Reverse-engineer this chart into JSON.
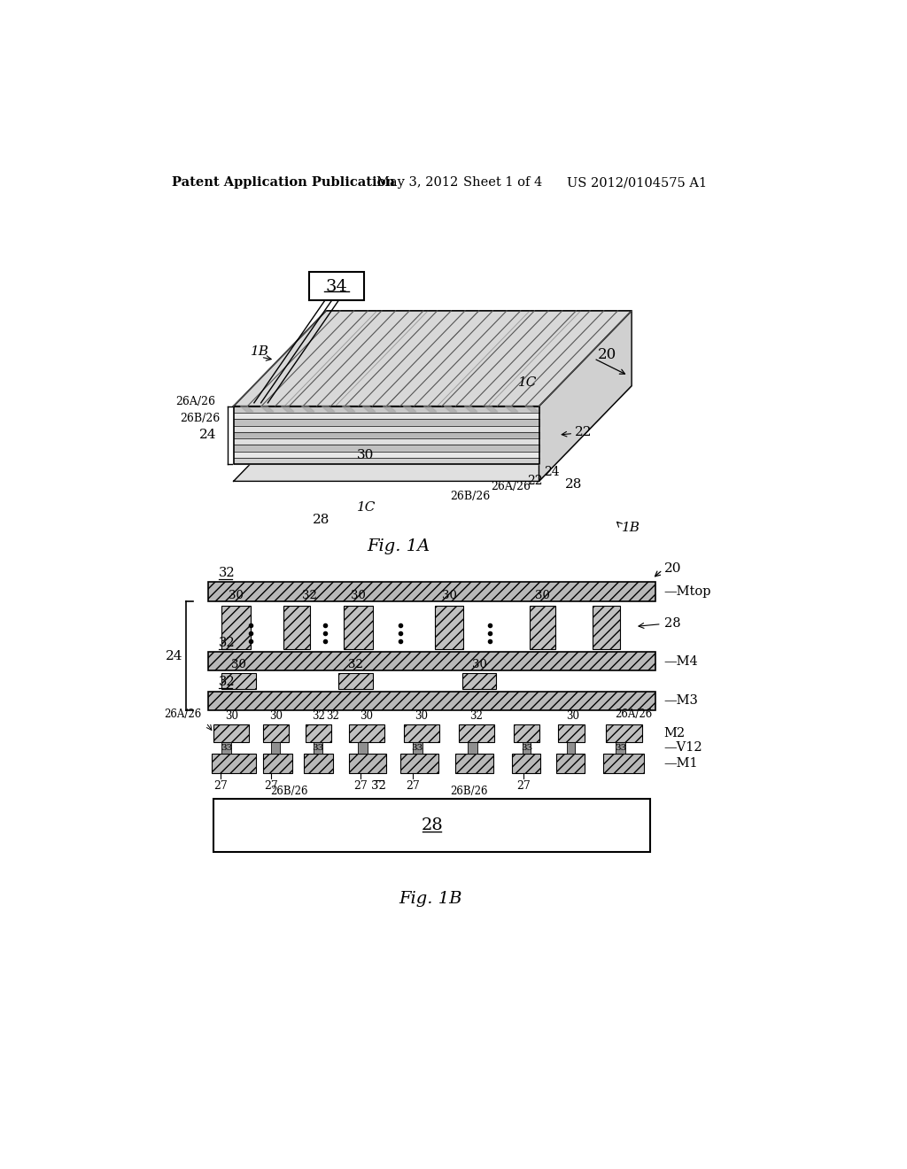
{
  "bg_color": "#ffffff",
  "header_text": "Patent Application Publication",
  "header_date": "May 3, 2012",
  "header_sheet": "Sheet 1 of 4",
  "header_patent": "US 2012/0104575 A1",
  "fig1a_label": "Fig. 1A",
  "fig1b_label": "Fig. 1B",
  "line_color": "#000000",
  "hatch_color": "#555555"
}
